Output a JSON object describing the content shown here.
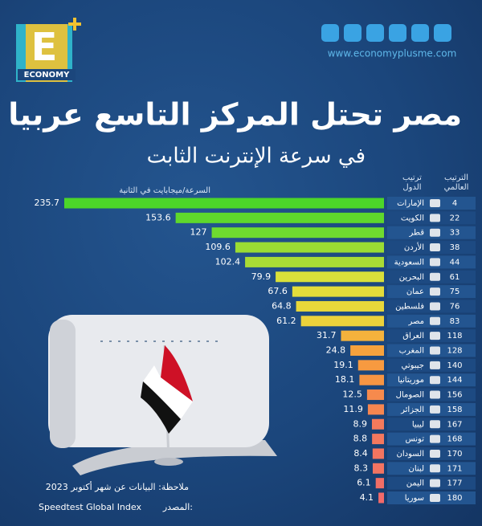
{
  "logo": {
    "letter": "E",
    "word": "ECONOMY"
  },
  "website": "www.economyplusme.com",
  "chart_data": {
    "type": "hbar",
    "title": "مصر تحتل المركز التاسع عربيا",
    "subtitle": "في سرعة الإنترنت الثابت",
    "value_axis_label": "السرعة/ميجابايت في الثانية",
    "category_header": "ترتيب الدول",
    "rank_header": "الترتيب العالمي",
    "categories": [
      "الإمارات",
      "الكويت",
      "قطر",
      "الأردن",
      "السعودية",
      "البحرين",
      "عمان",
      "فلسطين",
      "مصر",
      "العراق",
      "المغرب",
      "جيبوتي",
      "موريتانيا",
      "الصومال",
      "الجزائر",
      "ليبيا",
      "تونس",
      "السودان",
      "لبنان",
      "اليمن",
      "سوريا"
    ],
    "world_ranks": [
      4,
      22,
      33,
      38,
      44,
      61,
      75,
      76,
      83,
      118,
      128,
      140,
      144,
      156,
      158,
      167,
      168,
      170,
      171,
      177,
      180
    ],
    "values": [
      235.7,
      153.6,
      127,
      109.6,
      102.4,
      79.9,
      67.6,
      64.8,
      61.2,
      31.7,
      24.8,
      19.1,
      18.1,
      12.5,
      11.9,
      8.9,
      8.8,
      8.4,
      8.3,
      6.1,
      4.1
    ],
    "colors": [
      "#4cd629",
      "#5fd82c",
      "#6fdb2f",
      "#9bdc33",
      "#a9dc35",
      "#d9e03a",
      "#e3dc3a",
      "#e8d83a",
      "#ecd23b",
      "#f4b23c",
      "#f6a23d",
      "#f79a40",
      "#f79543",
      "#f68a4d",
      "#f68650",
      "#f47a5c",
      "#f4785e",
      "#f37560",
      "#f37462",
      "#f26e66",
      "#f26a6a"
    ],
    "note": "ملاحظة: البيانات عن شهر أكتوبر 2023",
    "source_label": "المصدر:",
    "source": "Speedtest Global Index"
  }
}
